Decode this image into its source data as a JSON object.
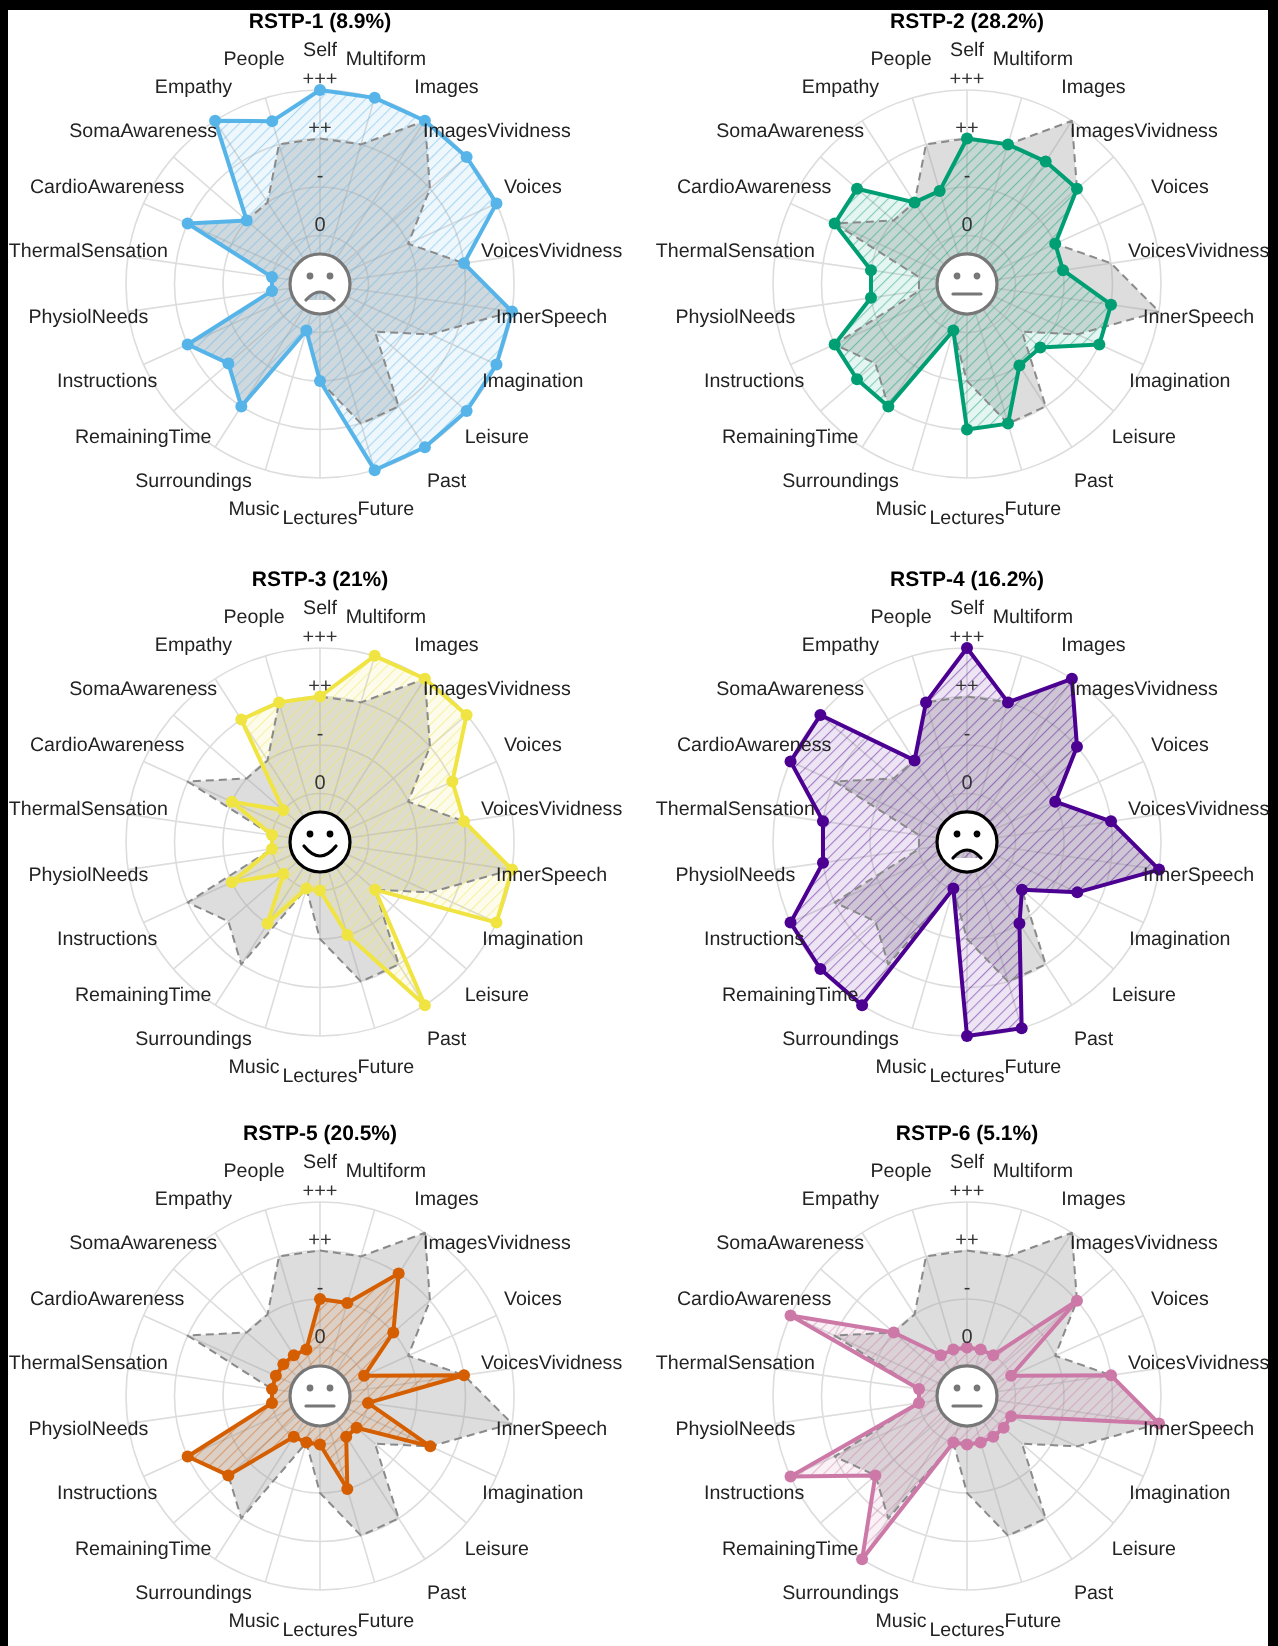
{
  "chart_data": [
    {
      "type": "radar",
      "title": "RSTP-1 (8.9%)",
      "categories": [
        "Self",
        "Multiform",
        "Images",
        "ImagesVividness",
        "Voices",
        "VoicesVividness",
        "InnerSpeech",
        "Imagination",
        "Leisure",
        "Past",
        "Future",
        "Lectures",
        "Music",
        "Surroundings",
        "RemainingTime",
        "Instructions",
        "PhysiolNeeds",
        "ThermalSensation",
        "CardioAwareness",
        "SomaAwareness",
        "Empathy",
        "People"
      ],
      "ylim": [
        -1,
        3
      ],
      "yticks": [
        {
          "value": 0,
          "label": "0"
        },
        {
          "value": 1,
          "label": "-"
        },
        {
          "value": 2,
          "label": "++"
        },
        {
          "value": 3,
          "label": "+++"
        }
      ],
      "grid": true,
      "series": [
        {
          "color": "#999999",
          "line_style": "dashed",
          "marker": "none",
          "values": [
            2,
            2,
            3,
            2,
            1,
            2,
            3,
            1.5,
            0.5,
            2,
            2,
            1,
            0,
            2,
            1.5,
            2,
            0,
            0,
            2,
            1,
            1,
            2
          ]
        },
        {
          "color": "#56b4e9",
          "marker": "circle",
          "values": [
            3,
            3,
            3,
            3,
            3,
            2,
            3,
            3,
            3,
            3,
            3,
            1,
            0,
            2,
            1.5,
            2,
            0,
            0,
            2,
            1,
            3,
            2.5
          ]
        }
      ]
    },
    {
      "type": "radar",
      "title": "RSTP-2 (28.2%)",
      "categories": [
        "Self",
        "Multiform",
        "Images",
        "ImagesVividness",
        "Voices",
        "VoicesVividness",
        "InnerSpeech",
        "Imagination",
        "Leisure",
        "Past",
        "Future",
        "Lectures",
        "Music",
        "Surroundings",
        "RemainingTime",
        "Instructions",
        "PhysiolNeeds",
        "ThermalSensation",
        "CardioAwareness",
        "SomaAwareness",
        "Empathy",
        "People"
      ],
      "ylim": [
        -1,
        3
      ],
      "yticks": [
        {
          "value": 0,
          "label": "0"
        },
        {
          "value": 1,
          "label": "-"
        },
        {
          "value": 2,
          "label": "++"
        },
        {
          "value": 3,
          "label": "+++"
        }
      ],
      "grid": true,
      "series": [
        {
          "color": "#999999",
          "line_style": "dashed",
          "marker": "none",
          "values": [
            2,
            2,
            3,
            2,
            1,
            2,
            3,
            1.5,
            0.5,
            2,
            2,
            1,
            0,
            2,
            1.5,
            2,
            0,
            0,
            2,
            1,
            1,
            2
          ]
        },
        {
          "color": "#009e73",
          "marker": "circle",
          "values": [
            2,
            2,
            2,
            2,
            1,
            1,
            2,
            2,
            1,
            1,
            2,
            2,
            0,
            2,
            2,
            2,
            1,
            1,
            2,
            2,
            1,
            1
          ]
        }
      ]
    },
    {
      "type": "radar",
      "title": "RSTP-3 (21%)",
      "categories": [
        "Self",
        "Multiform",
        "Images",
        "ImagesVividness",
        "Voices",
        "VoicesVividness",
        "InnerSpeech",
        "Imagination",
        "Leisure",
        "Past",
        "Future",
        "Lectures",
        "Music",
        "Surroundings",
        "RemainingTime",
        "Instructions",
        "PhysiolNeeds",
        "ThermalSensation",
        "CardioAwareness",
        "SomaAwareness",
        "Empathy",
        "People"
      ],
      "ylim": [
        -1,
        3
      ],
      "yticks": [
        {
          "value": 0,
          "label": "0"
        },
        {
          "value": 1,
          "label": "-"
        },
        {
          "value": 2,
          "label": "++"
        },
        {
          "value": 3,
          "label": "+++"
        }
      ],
      "grid": true,
      "series": [
        {
          "color": "#999999",
          "line_style": "dashed",
          "marker": "none",
          "values": [
            2,
            2,
            3,
            2,
            1,
            2,
            3,
            1.5,
            0.5,
            2,
            2,
            1,
            0,
            2,
            1.5,
            2,
            0,
            0,
            2,
            1,
            1,
            2
          ]
        },
        {
          "color": "#f0e442",
          "marker": "circle",
          "values": [
            2,
            3,
            3,
            3,
            2,
            2,
            3,
            3,
            0.5,
            3,
            1,
            0,
            0,
            1,
            0,
            1,
            0,
            0,
            1,
            0,
            2,
            2
          ]
        }
      ]
    },
    {
      "type": "radar",
      "title": "RSTP-4 (16.2%)",
      "categories": [
        "Self",
        "Multiform",
        "Images",
        "ImagesVividness",
        "Voices",
        "VoicesVividness",
        "InnerSpeech",
        "Imagination",
        "Leisure",
        "Past",
        "Future",
        "Lectures",
        "Music",
        "Surroundings",
        "RemainingTime",
        "Instructions",
        "PhysiolNeeds",
        "ThermalSensation",
        "CardioAwareness",
        "SomaAwareness",
        "Empathy",
        "People"
      ],
      "ylim": [
        -1,
        3
      ],
      "yticks": [
        {
          "value": 0,
          "label": "0"
        },
        {
          "value": 1,
          "label": "-"
        },
        {
          "value": 2,
          "label": "++"
        },
        {
          "value": 3,
          "label": "+++"
        }
      ],
      "grid": true,
      "series": [
        {
          "color": "#999999",
          "line_style": "dashed",
          "marker": "none",
          "values": [
            2,
            2,
            3,
            2,
            1,
            2,
            3,
            1.5,
            0.5,
            2,
            2,
            1,
            0,
            2,
            1.5,
            2,
            0,
            0,
            2,
            1,
            1,
            2
          ]
        },
        {
          "color": "#4b0092",
          "marker": "circle",
          "values": [
            3,
            2,
            3,
            2,
            1,
            2,
            3,
            1.5,
            0.5,
            1,
            3,
            3,
            0,
            3,
            3,
            3,
            2,
            2,
            3,
            3,
            1,
            2
          ]
        }
      ]
    },
    {
      "type": "radar",
      "title": "RSTP-5 (20.5%)",
      "categories": [
        "Self",
        "Multiform",
        "Images",
        "ImagesVividness",
        "Voices",
        "VoicesVividness",
        "InnerSpeech",
        "Imagination",
        "Leisure",
        "Past",
        "Future",
        "Lectures",
        "Music",
        "Surroundings",
        "RemainingTime",
        "Instructions",
        "PhysiolNeeds",
        "ThermalSensation",
        "CardioAwareness",
        "SomaAwareness",
        "Empathy",
        "People"
      ],
      "ylim": [
        -1,
        3
      ],
      "yticks": [
        {
          "value": 0,
          "label": "0"
        },
        {
          "value": 1,
          "label": "-"
        },
        {
          "value": 2,
          "label": "++"
        },
        {
          "value": 3,
          "label": "+++"
        }
      ],
      "grid": true,
      "series": [
        {
          "color": "#999999",
          "line_style": "dashed",
          "marker": "none",
          "values": [
            2,
            2,
            3,
            2,
            1,
            2,
            3,
            1.5,
            0.5,
            2,
            2,
            1,
            0,
            2,
            1.5,
            2,
            0,
            0,
            2,
            1,
            1,
            2
          ]
        },
        {
          "color": "#d55e00",
          "marker": "circle",
          "values": [
            1,
            1,
            2,
            1,
            0,
            2,
            0,
            1.5,
            0,
            0,
            1,
            0,
            0,
            0,
            1.5,
            2,
            0,
            0,
            0,
            0,
            0,
            0
          ]
        }
      ]
    },
    {
      "type": "radar",
      "title": "RSTP-6 (5.1%)",
      "categories": [
        "Self",
        "Multiform",
        "Images",
        "ImagesVividness",
        "Voices",
        "VoicesVividness",
        "InnerSpeech",
        "Imagination",
        "Leisure",
        "Past",
        "Future",
        "Lectures",
        "Music",
        "Surroundings",
        "RemainingTime",
        "Instructions",
        "PhysiolNeeds",
        "ThermalSensation",
        "CardioAwareness",
        "SomaAwareness",
        "Empathy",
        "People"
      ],
      "ylim": [
        -1,
        3
      ],
      "yticks": [
        {
          "value": 0,
          "label": "0"
        },
        {
          "value": 1,
          "label": "-"
        },
        {
          "value": 2,
          "label": "++"
        },
        {
          "value": 3,
          "label": "+++"
        }
      ],
      "grid": true,
      "series": [
        {
          "color": "#999999",
          "line_style": "dashed",
          "marker": "none",
          "values": [
            2,
            2,
            3,
            2,
            1,
            2,
            3,
            1.5,
            0.5,
            2,
            2,
            1,
            0,
            2,
            1.5,
            2,
            0,
            0,
            2,
            1,
            1,
            2
          ]
        },
        {
          "color": "#cc79a7",
          "marker": "circle",
          "values": [
            0,
            0,
            0,
            2,
            0,
            2,
            3,
            0,
            0,
            0,
            0,
            0,
            0,
            3,
            1.5,
            3,
            0,
            0,
            3,
            1,
            0,
            0
          ]
        }
      ]
    }
  ]
}
